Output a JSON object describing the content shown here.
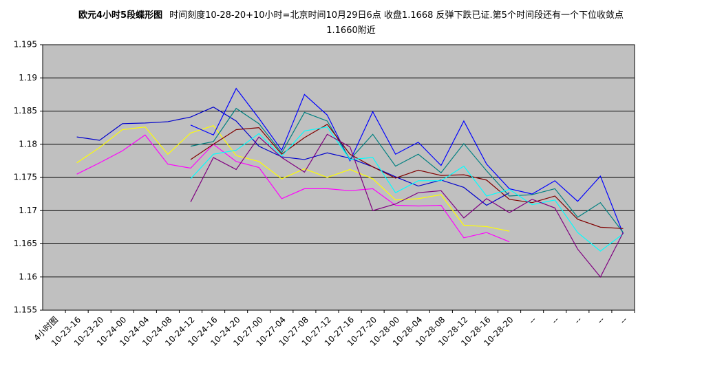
{
  "chart_data": {
    "type": "line",
    "title": "欧元4小时5段蝶形图",
    "subtitle": "时间刻度10-28-20+10小时=北京时间10月29日6点 收盘1.1668  反弹下跌已证.第5个时间段还有一个下位收敛点1.1660附近",
    "categories": [
      "4小时图",
      "10-23-16",
      "10-23-20",
      "10-24-00",
      "10-24-04",
      "10-24-08",
      "10-24-12",
      "10-24-16",
      "10-24-20",
      "10-27-00",
      "10-27-04",
      "10-27-08",
      "10-27-12",
      "10-27-16",
      "10-27-20",
      "10-28-00",
      "10-28-04",
      "10-28-08",
      "10-28-12",
      "10-28-16",
      "10-28-20",
      "--",
      "--",
      "--",
      "--",
      "--"
    ],
    "ylim": [
      1.155,
      1.195
    ],
    "yticks": [
      1.155,
      1.16,
      1.165,
      1.17,
      1.175,
      1.18,
      1.185,
      1.19,
      1.195
    ],
    "grid": true,
    "plot_background": "#c0c0c0",
    "series": [
      {
        "color": "#0000cc",
        "values": [
          null,
          1.1811,
          1.1806,
          1.1831,
          1.1832,
          1.1834,
          1.1841,
          1.1856,
          1.1835,
          1.1797,
          1.1781,
          1.1777,
          1.1787,
          1.1779,
          1.1766,
          1.1751,
          1.1737,
          1.1746,
          1.1735,
          1.1708,
          1.1727,
          null,
          null,
          null,
          null,
          null
        ]
      },
      {
        "color": "#ffff00",
        "values": [
          null,
          1.1772,
          1.1795,
          1.1822,
          1.1826,
          1.1785,
          1.1817,
          1.1828,
          1.1783,
          1.1774,
          1.1748,
          1.1763,
          1.175,
          1.1762,
          1.1748,
          1.1716,
          1.1718,
          1.1724,
          1.1678,
          1.1676,
          1.1669,
          null,
          null,
          null,
          null,
          null
        ]
      },
      {
        "color": "#ff00ff",
        "values": [
          null,
          1.1755,
          1.1772,
          1.179,
          1.1814,
          1.177,
          1.1764,
          1.18,
          1.1774,
          1.1765,
          1.1718,
          1.1733,
          1.1733,
          1.173,
          1.1733,
          1.1708,
          1.1707,
          1.1708,
          1.1659,
          1.1667,
          1.1653,
          null,
          null,
          null,
          null,
          null
        ]
      },
      {
        "color": "#0000ff",
        "values": [
          null,
          null,
          null,
          null,
          null,
          null,
          1.1829,
          1.1814,
          1.1884,
          1.1839,
          1.1791,
          1.1875,
          1.1844,
          1.1775,
          1.1849,
          1.1785,
          1.1803,
          1.1768,
          1.1835,
          1.177,
          1.1733,
          1.1725,
          1.1745,
          1.1714,
          1.1752,
          1.1665
        ]
      },
      {
        "color": "#008080",
        "values": [
          null,
          null,
          null,
          null,
          null,
          null,
          1.1797,
          1.1804,
          1.1854,
          1.1831,
          1.1787,
          1.1848,
          1.1835,
          1.1777,
          1.1815,
          1.1767,
          1.1785,
          1.1757,
          1.1801,
          1.176,
          1.1722,
          1.1724,
          1.1733,
          1.169,
          1.1712,
          1.1667
        ]
      },
      {
        "color": "#800000",
        "values": [
          null,
          null,
          null,
          null,
          null,
          null,
          1.1777,
          1.18,
          1.1822,
          1.1825,
          1.1785,
          1.181,
          1.183,
          1.1785,
          1.1766,
          1.1749,
          1.1761,
          1.1753,
          1.1754,
          1.1746,
          1.1717,
          1.1712,
          1.1722,
          1.1687,
          1.1675,
          1.1673
        ]
      },
      {
        "color": "#00ffff",
        "values": [
          null,
          null,
          null,
          null,
          null,
          null,
          1.1748,
          1.1785,
          1.1791,
          1.1816,
          1.1782,
          1.182,
          1.1826,
          1.1777,
          1.178,
          1.1727,
          1.1745,
          1.1745,
          1.1767,
          1.1722,
          1.1732,
          1.1709,
          1.1716,
          1.1667,
          1.1639,
          1.1665
        ]
      },
      {
        "color": "#800080",
        "values": [
          null,
          null,
          null,
          null,
          null,
          null,
          1.1713,
          1.178,
          1.1762,
          1.1811,
          1.178,
          1.1758,
          1.1815,
          1.1796,
          1.17,
          1.171,
          1.1727,
          1.173,
          1.1689,
          1.1718,
          1.1697,
          1.1717,
          1.1704,
          1.1642,
          1.16,
          1.1667
        ]
      }
    ]
  }
}
